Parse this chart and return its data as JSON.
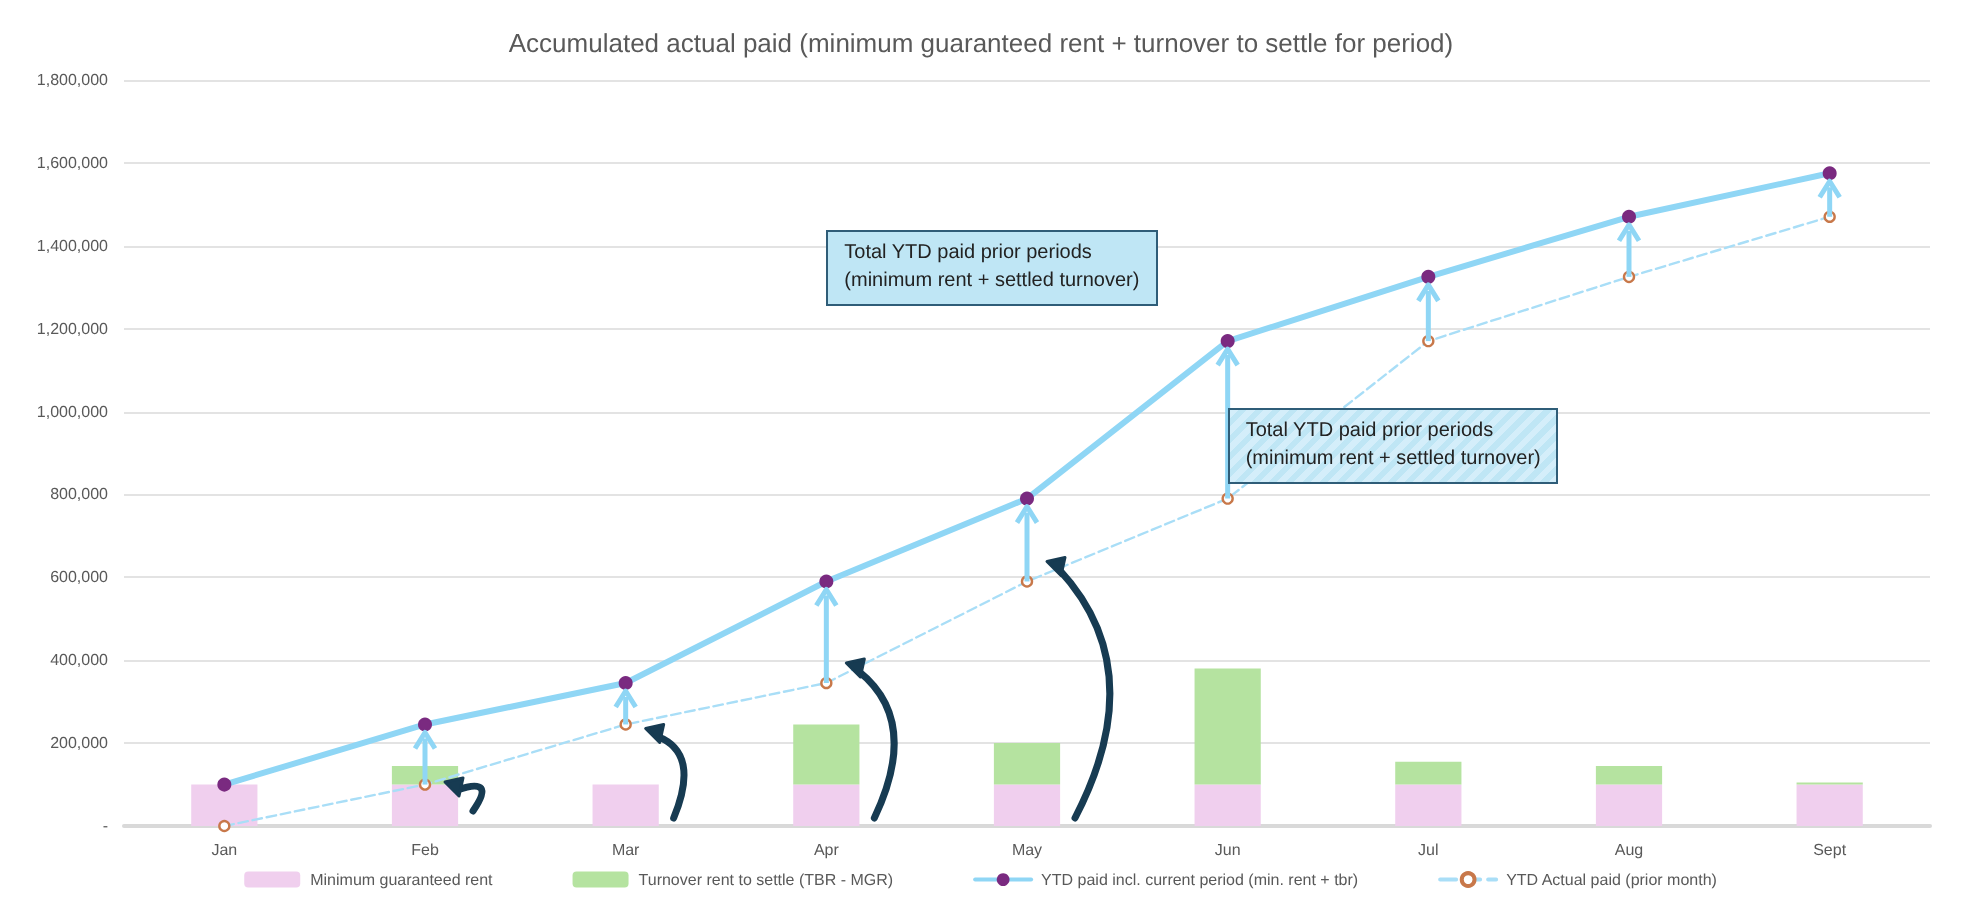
{
  "chart_data": {
    "type": "bar",
    "title": "Accumulated actual paid (minimum guaranteed rent + turnover to settle for period)",
    "categories": [
      "Jan",
      "Feb",
      "Mar",
      "Apr",
      "May",
      "Jun",
      "Jul",
      "Aug",
      "Sept"
    ],
    "stacked": true,
    "series": [
      {
        "name": "Minimum guaranteed rent",
        "color": "#f0cfee",
        "values": [
          100000,
          100000,
          100000,
          100000,
          100000,
          100000,
          100000,
          100000,
          100000
        ]
      },
      {
        "name": "Turnover rent to settle (TBR - MGR)",
        "color": "#b5e3a0",
        "values": [
          0,
          45000,
          0,
          145000,
          100000,
          280000,
          55000,
          45000,
          5000
        ]
      },
      {
        "name": "YTD paid incl. current period (min. rent + tbr)",
        "type": "line",
        "color": "#8fd6f5",
        "marker": "circle",
        "line_style": "solid",
        "values": [
          100000,
          245000,
          345000,
          590000,
          790000,
          1170000,
          1325000,
          1470000,
          1575000
        ]
      },
      {
        "name": "YTD Actual paid (prior month)",
        "type": "line",
        "color": "#a9def7",
        "marker": "circle",
        "line_style": "dashed",
        "values": [
          0,
          100000,
          245000,
          345000,
          590000,
          790000,
          1170000,
          1325000,
          1470000
        ]
      }
    ],
    "ylim": [
      0,
      1800000
    ],
    "yticks": [
      {
        "value": 0,
        "label": "-"
      },
      {
        "value": 200000,
        "label": "200,000"
      },
      {
        "value": 400000,
        "label": "400,000"
      },
      {
        "value": 600000,
        "label": "600,000"
      },
      {
        "value": 800000,
        "label": "800,000"
      },
      {
        "value": 1000000,
        "label": "1,000,000"
      },
      {
        "value": 1200000,
        "label": "1,200,000"
      },
      {
        "value": 1400000,
        "label": "1,400,000"
      },
      {
        "value": 1600000,
        "label": "1,600,000"
      },
      {
        "value": 1800000,
        "label": "1,800,000"
      }
    ],
    "grid": "y",
    "legend": "bottom",
    "annotations": [
      "Total YTD paid prior periods\n(minimum rent + settled turnover)",
      "Total YTD paid prior periods\n(minimum rent + settled turnover)"
    ]
  }
}
